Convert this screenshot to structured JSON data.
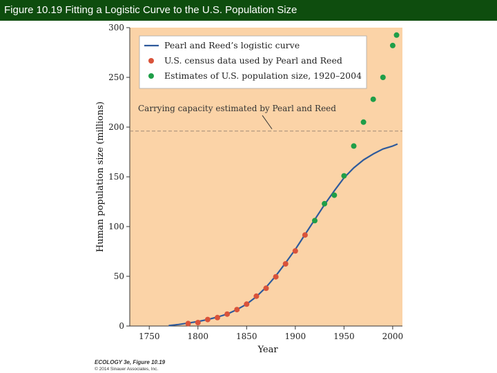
{
  "header": {
    "title": "Figure 10.19 Fitting a Logistic Curve to the U.S. Population Size"
  },
  "colors": {
    "title_bar": "#0e4d0e",
    "plot_bg": "#fbd3a7",
    "curve": "#2e5a9c",
    "census_points": "#d9533a",
    "estimate_points": "#1f9e48",
    "capacity_line": "#a08a76"
  },
  "credit": {
    "line1": "ECOLOGY 3e, Figure 10.19",
    "line2": "© 2014 Sinauer Associates, Inc."
  },
  "chart_data": {
    "type": "scatter",
    "title": "",
    "xlabel": "Year",
    "ylabel": "Human population size (millions)",
    "xlim": [
      1730,
      2010
    ],
    "ylim": [
      0,
      300
    ],
    "xticks": [
      1750,
      1800,
      1850,
      1900,
      1950,
      2000
    ],
    "yticks": [
      0,
      50,
      100,
      150,
      200,
      250,
      300
    ],
    "grid": false,
    "legend_position": "top",
    "legend": [
      {
        "label": "Pearl and Reed’s logistic curve",
        "marker": "line",
        "color": "#2e5a9c"
      },
      {
        "label": "U.S. census data used by Pearl and Reed",
        "marker": "dot",
        "color": "#d9533a"
      },
      {
        "label": "Estimates of U.S. population size, 1920–2004",
        "marker": "dot",
        "color": "#1f9e48"
      }
    ],
    "annotation": {
      "text": "Carrying capacity estimated by Pearl and Reed",
      "value": 196
    },
    "logistic_curve": {
      "name": "Pearl and Reed’s logistic curve",
      "x": [
        1770,
        1780,
        1790,
        1800,
        1810,
        1820,
        1830,
        1840,
        1850,
        1860,
        1870,
        1880,
        1890,
        1900,
        1910,
        1920,
        1930,
        1940,
        1950,
        1960,
        1970,
        1980,
        1990,
        2000,
        2005
      ],
      "y": [
        0.5,
        1.5,
        3,
        4.5,
        6.5,
        9,
        12,
        16.5,
        22,
        29.5,
        39,
        50.5,
        63.5,
        77,
        92,
        107,
        122,
        136,
        149,
        159,
        167,
        173,
        178,
        181,
        183
      ]
    },
    "series": [
      {
        "name": "U.S. census data used by Pearl and Reed",
        "x": [
          1790,
          1800,
          1810,
          1820,
          1830,
          1840,
          1850,
          1860,
          1870,
          1880,
          1890,
          1900,
          1910
        ],
        "y": [
          2.5,
          3.5,
          6.5,
          8.5,
          12,
          16.5,
          22,
          30,
          38,
          49.5,
          62.5,
          75.5,
          91.5
        ]
      },
      {
        "name": "Estimates of U.S. population size, 1920–2004",
        "x": [
          1920,
          1930,
          1940,
          1950,
          1960,
          1970,
          1980,
          1990,
          2000,
          2004
        ],
        "y": [
          106,
          123,
          131.5,
          151,
          181,
          205,
          228,
          250,
          282,
          292.5
        ]
      }
    ]
  }
}
